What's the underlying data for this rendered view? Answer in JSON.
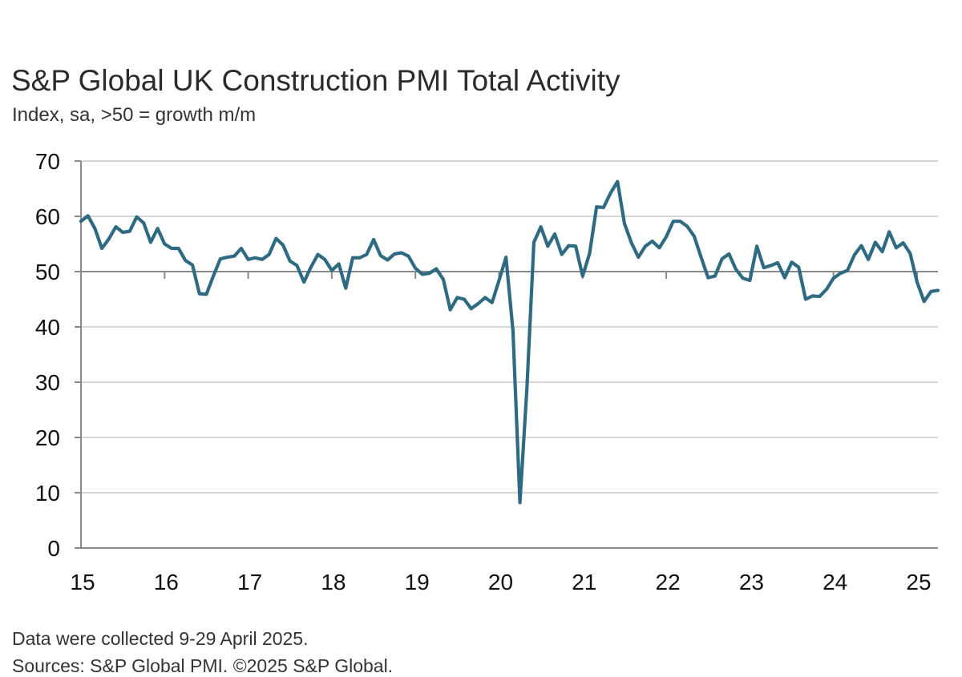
{
  "chart_data": {
    "type": "line",
    "title": "S&P Global UK Construction PMI Total Activity",
    "subtitle": "Index, sa, >50 = growth m/m",
    "xlabel": "",
    "ylabel": "",
    "ylim": [
      0,
      70
    ],
    "yticks": [
      0,
      10,
      20,
      30,
      40,
      50,
      60,
      70
    ],
    "xlim": [
      "2015-01",
      "2025-04"
    ],
    "xticks": [
      {
        "label": "15",
        "date": "2015-01"
      },
      {
        "label": "16",
        "date": "2016-01"
      },
      {
        "label": "17",
        "date": "2017-01"
      },
      {
        "label": "18",
        "date": "2018-01"
      },
      {
        "label": "19",
        "date": "2019-01"
      },
      {
        "label": "20",
        "date": "2020-01"
      },
      {
        "label": "21",
        "date": "2021-01"
      },
      {
        "label": "22",
        "date": "2022-01"
      },
      {
        "label": "23",
        "date": "2023-01"
      },
      {
        "label": "24",
        "date": "2024-01"
      },
      {
        "label": "25",
        "date": "2025-01"
      }
    ],
    "reference_line": 50,
    "grid": true,
    "series": [
      {
        "color": "#2e6b82",
        "start": "2015-01",
        "frequency": "monthly",
        "values": [
          59.1,
          60.1,
          57.8,
          54.2,
          55.9,
          58.1,
          57.1,
          57.3,
          59.9,
          58.8,
          55.3,
          57.8,
          55.0,
          54.2,
          54.2,
          52.0,
          51.2,
          46.0,
          45.9,
          49.2,
          52.3,
          52.6,
          52.8,
          54.2,
          52.2,
          52.5,
          52.2,
          53.1,
          56.0,
          54.8,
          51.9,
          51.1,
          48.1,
          50.8,
          53.1,
          52.2,
          50.2,
          51.4,
          47.0,
          52.5,
          52.5,
          53.1,
          55.8,
          52.9,
          52.1,
          53.2,
          53.4,
          52.8,
          50.6,
          49.5,
          49.7,
          50.5,
          48.6,
          43.1,
          45.3,
          45.0,
          43.3,
          44.2,
          45.3,
          44.4,
          48.4,
          52.6,
          39.3,
          8.2,
          28.9,
          55.3,
          58.1,
          54.6,
          56.8,
          53.1,
          54.7,
          54.6,
          49.2,
          53.3,
          61.7,
          61.6,
          64.2,
          66.3,
          58.7,
          55.2,
          52.6,
          54.6,
          55.5,
          54.3,
          56.3,
          59.1,
          59.1,
          58.2,
          56.4,
          52.6,
          48.9,
          49.2,
          52.3,
          53.2,
          50.4,
          48.8,
          48.4,
          54.6,
          50.7,
          51.1,
          51.6,
          48.9,
          51.7,
          50.8,
          45.0,
          45.6,
          45.5,
          46.8,
          48.8,
          49.7,
          50.2,
          53.0,
          54.7,
          52.2,
          55.3,
          53.6,
          57.2,
          54.3,
          55.2,
          53.3,
          48.1,
          44.6,
          46.4,
          46.6
        ]
      }
    ]
  },
  "footnote": "Data were collected 9-29 April 2025.",
  "source": "Sources: S&P Global PMI. ©2025 S&P Global."
}
